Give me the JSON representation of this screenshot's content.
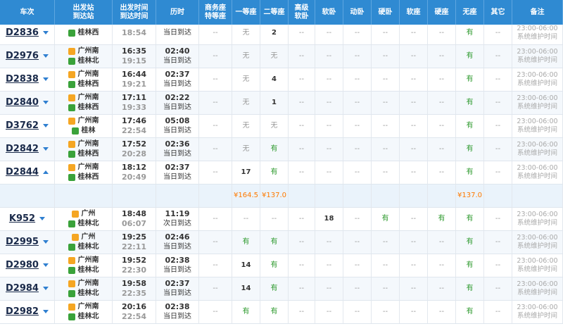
{
  "header": {
    "columns": [
      [
        "车次"
      ],
      [
        "出发站",
        "到达站"
      ],
      [
        "出发时间",
        "到达时间"
      ],
      [
        "历时"
      ],
      [
        "商务座",
        "特等座"
      ],
      [
        "一等座"
      ],
      [
        "二等座"
      ],
      [
        "高级",
        "软卧"
      ],
      [
        "软卧"
      ],
      [
        "动卧"
      ],
      [
        "硬卧"
      ],
      [
        "软座"
      ],
      [
        "硬座"
      ],
      [
        "无座"
      ],
      [
        "其它"
      ],
      [
        "备注"
      ]
    ]
  },
  "seat_colors": {
    "有": "#2e9a2e",
    "无": "#999999",
    "--": "#999999"
  },
  "price_color": "#ff7a00",
  "rows": [
    {
      "train": "D2836",
      "to": "桂林西",
      "arrive": "18:54",
      "arrival_day": "当日到达",
      "seats": [
        "--",
        "无",
        "2",
        "--",
        "--",
        "--",
        "--",
        "--",
        "--",
        "有",
        "--"
      ],
      "note": "23:00-06:00系统维护时间"
    },
    {
      "train": "D2976",
      "from": "广州南",
      "to": "桂林北",
      "depart": "16:35",
      "arrive": "19:15",
      "duration": "02:40",
      "arrival_day": "当日到达",
      "seats": [
        "--",
        "无",
        "无",
        "--",
        "--",
        "--",
        "--",
        "--",
        "--",
        "有",
        "--"
      ],
      "note": "23:00-06:00系统维护时间"
    },
    {
      "train": "D2838",
      "from": "广州南",
      "to": "桂林西",
      "depart": "16:44",
      "arrive": "19:21",
      "duration": "02:37",
      "arrival_day": "当日到达",
      "seats": [
        "--",
        "无",
        "4",
        "--",
        "--",
        "--",
        "--",
        "--",
        "--",
        "有",
        "--"
      ],
      "note": "23:00-06:00系统维护时间"
    },
    {
      "train": "D2840",
      "from": "广州南",
      "to": "桂林西",
      "depart": "17:11",
      "arrive": "19:33",
      "duration": "02:22",
      "arrival_day": "当日到达",
      "seats": [
        "--",
        "无",
        "1",
        "--",
        "--",
        "--",
        "--",
        "--",
        "--",
        "有",
        "--"
      ],
      "note": "23:00-06:00系统维护时间"
    },
    {
      "train": "D3762",
      "from": "广州南",
      "to": "桂林",
      "depart": "17:46",
      "arrive": "22:54",
      "duration": "05:08",
      "arrival_day": "当日到达",
      "seats": [
        "--",
        "无",
        "无",
        "--",
        "--",
        "--",
        "--",
        "--",
        "--",
        "有",
        "--"
      ],
      "note": "23:00-06:00系统维护时间"
    },
    {
      "train": "D2842",
      "from": "广州南",
      "to": "桂林西",
      "depart": "17:52",
      "arrive": "20:28",
      "duration": "02:36",
      "arrival_day": "当日到达",
      "seats": [
        "--",
        "无",
        "有",
        "--",
        "--",
        "--",
        "--",
        "--",
        "--",
        "有",
        "--"
      ],
      "note": "23:00-06:00系统维护时间"
    },
    {
      "train": "D2844",
      "expanded": true,
      "from": "广州南",
      "to": "桂林西",
      "depart": "18:12",
      "arrive": "20:49",
      "duration": "02:37",
      "arrival_day": "当日到达",
      "seats": [
        "--",
        "17",
        "有",
        "--",
        "--",
        "--",
        "--",
        "--",
        "--",
        "有",
        "--"
      ],
      "note": "23:00-06:00系统维护时间"
    },
    {
      "prices": [
        null,
        "¥164.5",
        "¥137.0",
        null,
        null,
        null,
        null,
        null,
        null,
        "¥137.0",
        null
      ]
    },
    {
      "train": "K952",
      "from": "广州",
      "to": "桂林北",
      "depart": "18:48",
      "arrive": "06:07",
      "duration": "11:19",
      "arrival_day": "次日到达",
      "seats": [
        "--",
        "--",
        "--",
        "--",
        "18",
        "--",
        "有",
        "--",
        "有",
        "有",
        "--"
      ],
      "note": "23:00-06:00系统维护时间"
    },
    {
      "train": "D2995",
      "from": "广州",
      "to": "桂林北",
      "depart": "19:25",
      "arrive": "22:11",
      "duration": "02:46",
      "arrival_day": "当日到达",
      "seats": [
        "--",
        "有",
        "有",
        "--",
        "--",
        "--",
        "--",
        "--",
        "--",
        "有",
        "--"
      ],
      "note": "23:00-06:00系统维护时间"
    },
    {
      "train": "D2980",
      "from": "广州南",
      "to": "桂林北",
      "depart": "19:52",
      "arrive": "22:30",
      "duration": "02:38",
      "arrival_day": "当日到达",
      "seats": [
        "--",
        "14",
        "有",
        "--",
        "--",
        "--",
        "--",
        "--",
        "--",
        "有",
        "--"
      ],
      "note": "23:00-06:00系统维护时间"
    },
    {
      "train": "D2984",
      "from": "广州南",
      "to": "桂林北",
      "depart": "19:58",
      "arrive": "22:35",
      "duration": "02:37",
      "arrival_day": "当日到达",
      "seats": [
        "--",
        "14",
        "有",
        "--",
        "--",
        "--",
        "--",
        "--",
        "--",
        "有",
        "--"
      ],
      "note": "23:00-06:00系统维护时间"
    },
    {
      "train": "D2982",
      "from": "广州南",
      "to": "桂林北",
      "depart": "20:16",
      "arrive": "22:54",
      "duration": "02:38",
      "arrival_day": "当日到达",
      "seats": [
        "--",
        "有",
        "有",
        "--",
        "--",
        "--",
        "--",
        "--",
        "--",
        "有",
        "--"
      ],
      "note": "23:00-06:00系统维护时间"
    }
  ]
}
